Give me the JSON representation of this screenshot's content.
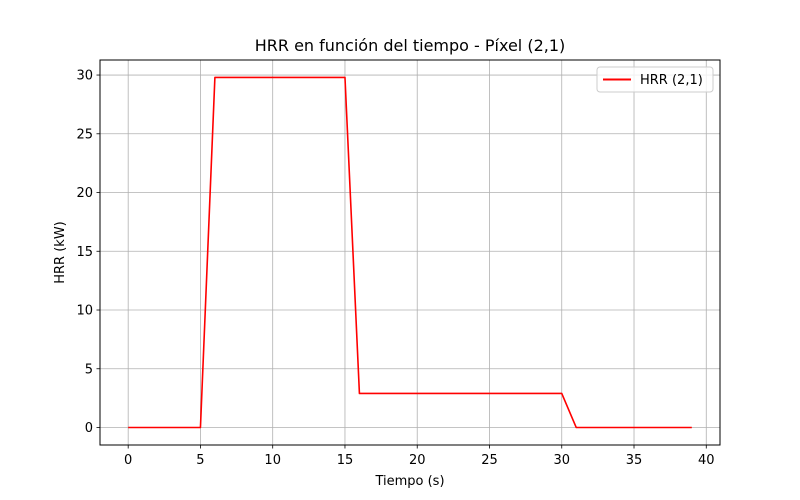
{
  "chart_data": {
    "type": "line",
    "title": "HRR en función del tiempo - Píxel (2,1)",
    "xlabel": "Tiempo (s)",
    "ylabel": "HRR (kW)",
    "xlim": [
      -1.95,
      40.95
    ],
    "ylim": [
      -1.49,
      31.28
    ],
    "xticks": [
      0,
      5,
      10,
      15,
      20,
      25,
      30,
      35,
      40
    ],
    "yticks": [
      0,
      5,
      10,
      15,
      20,
      25,
      30
    ],
    "grid": true,
    "legend_position": "top-right",
    "series": [
      {
        "name": "HRR (2,1)",
        "color": "#ff0000",
        "x": [
          0,
          1,
          2,
          3,
          4,
          5,
          6,
          7,
          8,
          9,
          10,
          11,
          12,
          13,
          14,
          15,
          16,
          17,
          18,
          19,
          20,
          21,
          22,
          23,
          24,
          25,
          26,
          27,
          28,
          29,
          30,
          31,
          32,
          33,
          34,
          35,
          36,
          37,
          38,
          39
        ],
        "y": [
          0,
          0,
          0,
          0,
          0,
          0,
          29.8,
          29.8,
          29.8,
          29.8,
          29.8,
          29.8,
          29.8,
          29.8,
          29.8,
          29.8,
          2.9,
          2.9,
          2.9,
          2.9,
          2.9,
          2.9,
          2.9,
          2.9,
          2.9,
          2.9,
          2.9,
          2.9,
          2.9,
          2.9,
          2.9,
          0,
          0,
          0,
          0,
          0,
          0,
          0,
          0,
          0
        ]
      }
    ]
  }
}
